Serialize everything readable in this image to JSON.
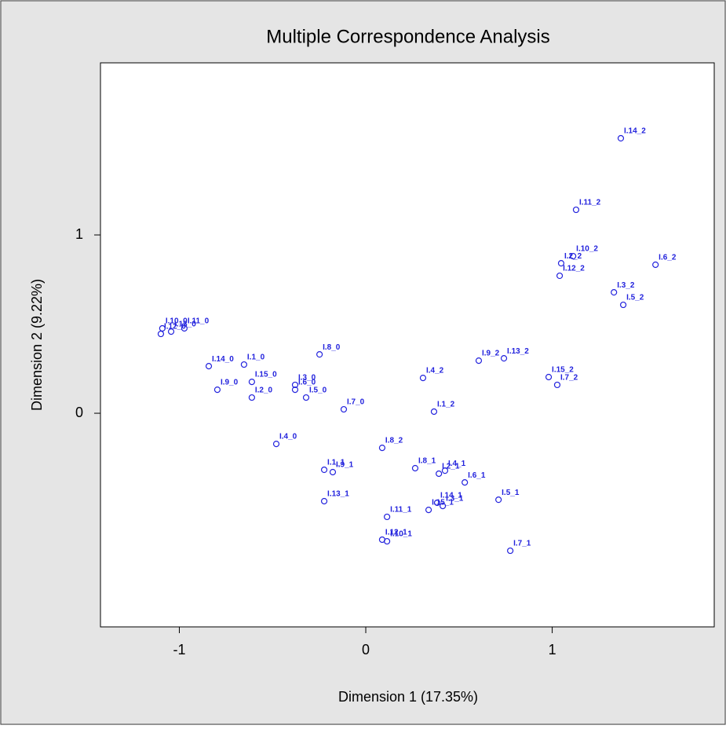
{
  "chart_data": {
    "type": "scatter",
    "title": "Multiple Correspondence Analysis",
    "x_label": "Dimension 1 (17.35%)",
    "y_label": "Dimension 2 (9.22%)",
    "color": "#2222dd",
    "labels": [
      "I.14_2",
      "I.11_2",
      "I.10_2",
      "I.6_2",
      "I.2_2",
      "I.12_2",
      "I.3_2",
      "I.5_2",
      "I.10_0",
      "I.11_0",
      "I.12_0",
      "I.13_0",
      "I.8_0",
      "I.13_2",
      "I.9_2",
      "I.14_0",
      "I.1_0",
      "I.4_2",
      "I.15_0",
      "I.15_2",
      "I.7_2",
      "I.3_0",
      "I.9_0",
      "I.2_0",
      "I.6_0",
      "I.5_0",
      "I.7_0",
      "I.1_2",
      "I.4_0",
      "I.8_2",
      "I.1_1",
      "I.9_1",
      "I.8_1",
      "I.4_1",
      "I.2_1",
      "I.6_1",
      "I.5_1",
      "I.13_1",
      "I.14_1",
      "I.3_1",
      "I.15_1",
      "I.11_1",
      "I.12_1",
      "I.10_1",
      "I.7_1"
    ],
    "x": [
      1.368,
      1.128,
      1.112,
      1.554,
      1.048,
      1.04,
      1.331,
      1.381,
      -1.091,
      -0.973,
      -1.099,
      -1.044,
      -0.248,
      0.741,
      0.606,
      -0.842,
      -0.653,
      0.307,
      -0.611,
      0.981,
      1.027,
      -0.379,
      -0.796,
      -0.611,
      -0.379,
      -0.32,
      -0.118,
      0.366,
      -0.48,
      0.088,
      -0.223,
      -0.177,
      0.265,
      0.425,
      0.392,
      0.531,
      0.712,
      -0.223,
      0.383,
      0.413,
      0.337,
      0.114,
      0.088,
      0.114,
      0.775
    ],
    "y": [
      1.542,
      1.141,
      0.881,
      0.833,
      0.841,
      0.771,
      0.678,
      0.608,
      0.476,
      0.476,
      0.445,
      0.458,
      0.33,
      0.308,
      0.295,
      0.264,
      0.273,
      0.198,
      0.176,
      0.203,
      0.159,
      0.159,
      0.132,
      0.088,
      0.132,
      0.088,
      0.022,
      0.009,
      -0.172,
      -0.194,
      -0.317,
      -0.33,
      -0.308,
      -0.322,
      -0.339,
      -0.388,
      -0.485,
      -0.493,
      -0.502,
      -0.52,
      -0.542,
      -0.581,
      -0.709,
      -0.718,
      -0.771
    ],
    "xlim": [
      -1.423,
      1.869
    ],
    "ylim": [
      -1.198,
      1.965
    ],
    "xticks": [
      -1,
      0,
      1
    ],
    "yticks": [
      0,
      1
    ]
  }
}
